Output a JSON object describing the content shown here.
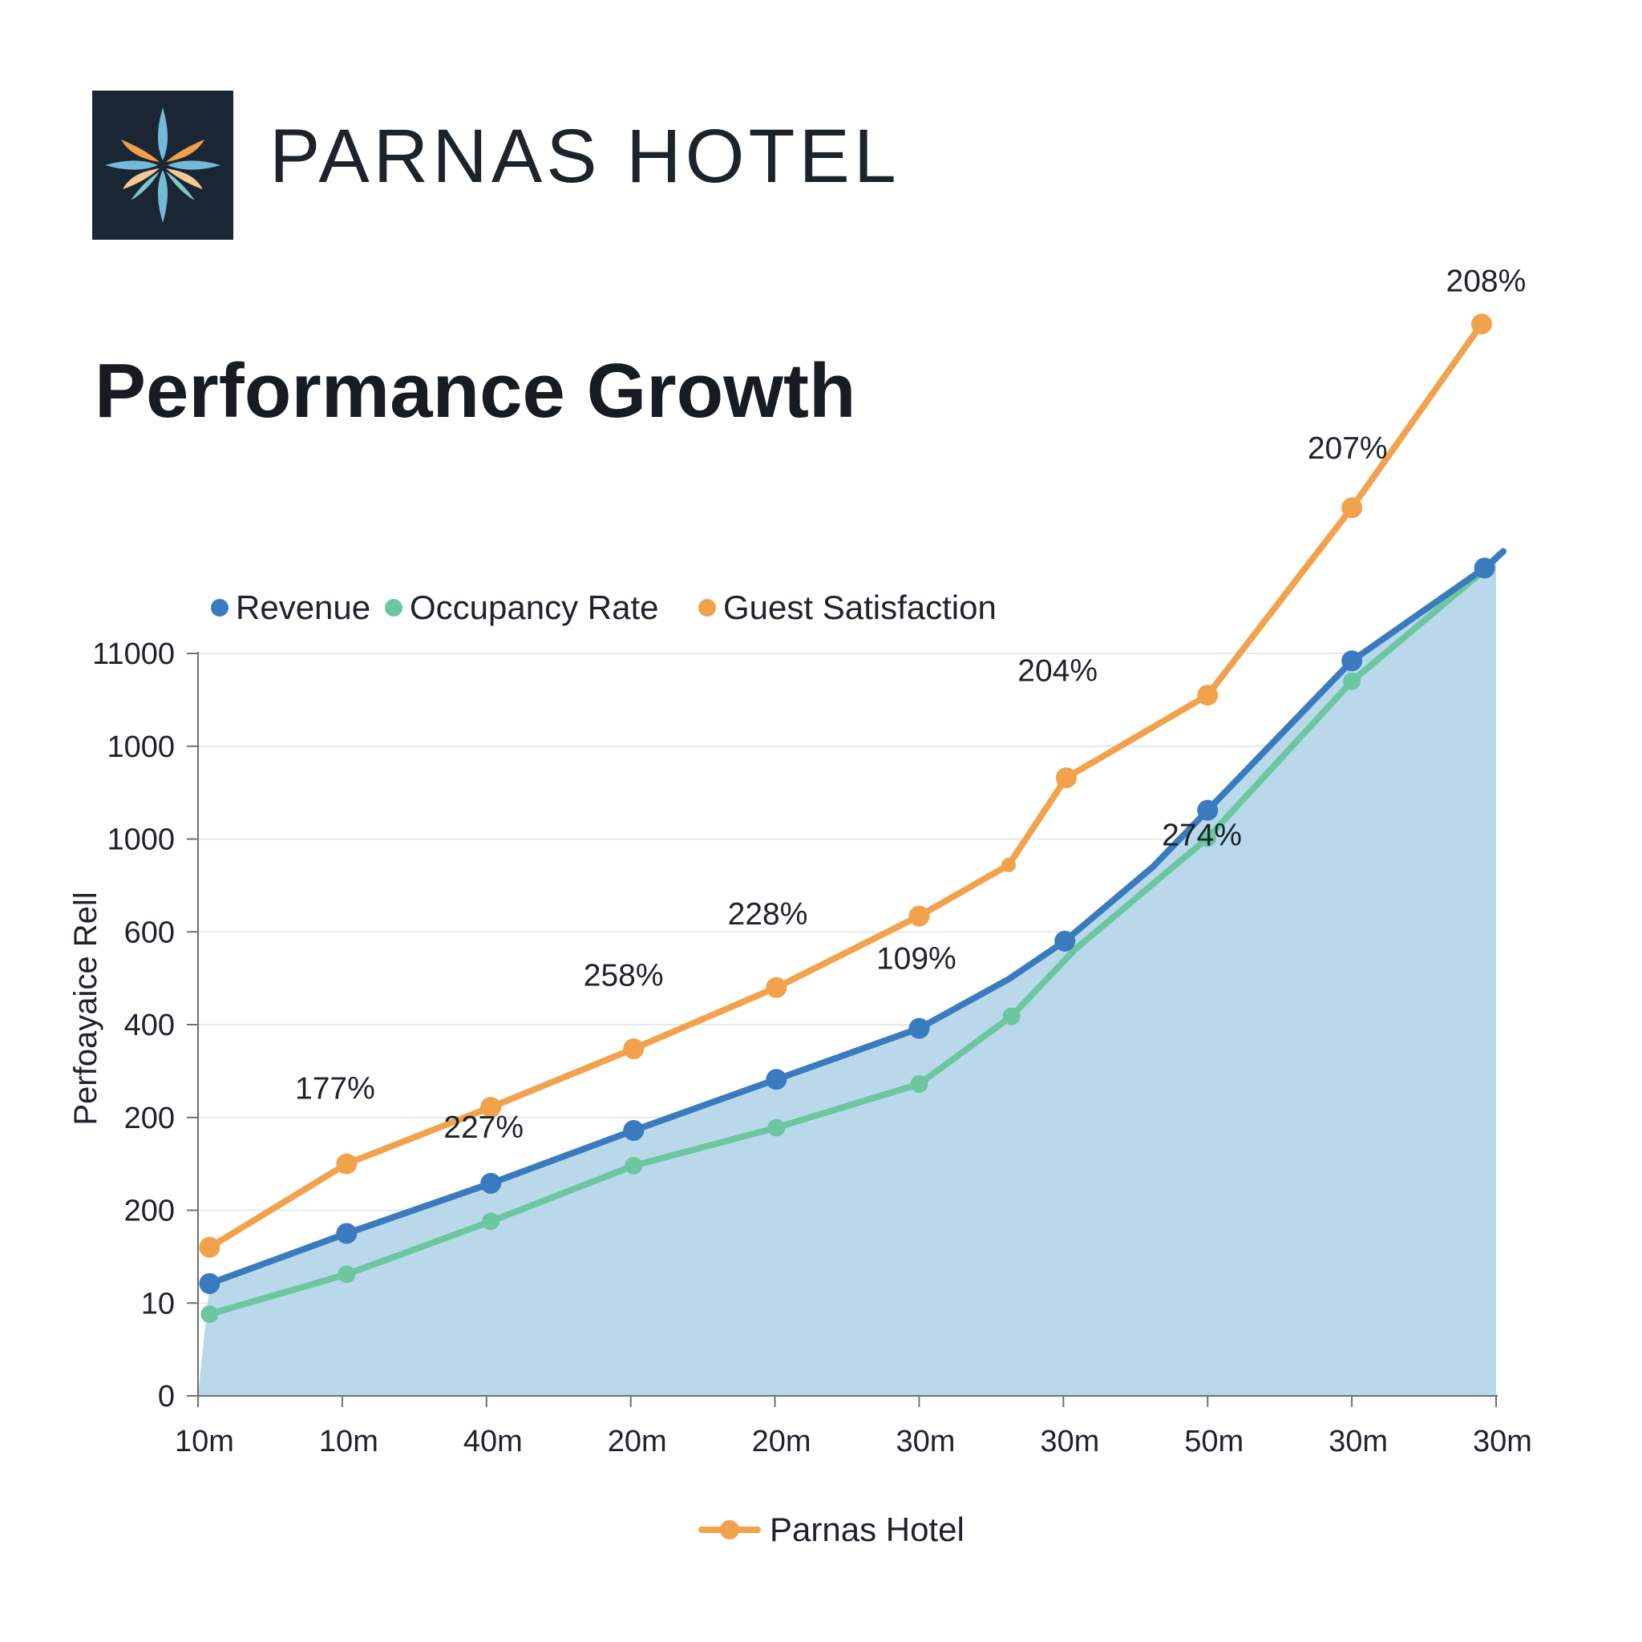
{
  "brand": {
    "name": "PARNAS HOTEL",
    "logo_icon": "star-flower-logo-icon"
  },
  "chart_data": {
    "type": "line",
    "title": "Performance Growth",
    "xlabel": "",
    "ylabel": "Perfoayaice Rell",
    "categories": [
      "10m",
      "10m",
      "40m",
      "20m",
      "20m",
      "30m",
      "30m",
      "50m",
      "30m",
      "30m"
    ],
    "y_tick_labels": [
      "0",
      "10",
      "200",
      "200",
      "400",
      "600",
      "1000",
      "1000",
      "11000"
    ],
    "grid": true,
    "legend_position": "top",
    "series": [
      {
        "name": "Revenue",
        "color": "#3a7bbf",
        "area_fill": "#b9d9ea",
        "x": [
          0.08,
          1.03,
          2.03,
          3.02,
          4.01,
          5.0,
          5.62,
          6.01,
          6.62,
          7.0,
          8.0,
          8.92,
          9.05
        ],
        "values": [
          1.21,
          1.75,
          2.29,
          2.86,
          3.41,
          3.96,
          4.49,
          4.9,
          5.7,
          6.31,
          7.92,
          8.92,
          9.1
        ],
        "markers": [
          true,
          true,
          true,
          true,
          true,
          true,
          false,
          true,
          false,
          true,
          true,
          true,
          false
        ]
      },
      {
        "name": "Occupancy Rate",
        "color": "#6cc6a0",
        "x": [
          0.08,
          1.03,
          2.03,
          3.02,
          4.01,
          5.0,
          5.64,
          6.08,
          6.7,
          7.0,
          8.0,
          8.92,
          9.05
        ],
        "values": [
          0.88,
          1.31,
          1.88,
          2.48,
          2.89,
          3.36,
          4.09,
          4.81,
          5.62,
          6.01,
          7.7,
          8.9,
          9.1
        ],
        "markers": [
          true,
          true,
          true,
          true,
          true,
          true,
          true,
          false,
          false,
          true,
          true,
          false,
          false
        ]
      },
      {
        "name": "Guest Satisfaction",
        "color": "#f2a24c",
        "x": [
          0.08,
          1.03,
          2.03,
          3.02,
          4.01,
          5.0,
          5.62,
          6.02,
          7.0,
          8.0,
          8.9
        ],
        "values": [
          1.6,
          2.5,
          3.11,
          3.74,
          4.4,
          5.17,
          5.72,
          6.66,
          7.55,
          9.57,
          11.55
        ],
        "markers": [
          true,
          true,
          true,
          true,
          true,
          true,
          true,
          true,
          true,
          true,
          true
        ],
        "data_labels": [
          {
            "x": 0.95,
            "y": 3.2,
            "text": "177%"
          },
          {
            "x": 1.98,
            "y": 2.78,
            "text": "227%"
          },
          {
            "x": 2.95,
            "y": 4.42,
            "text": "258%"
          },
          {
            "x": 3.95,
            "y": 5.08,
            "text": "228%"
          },
          {
            "x": 4.98,
            "y": 4.6,
            "text": "109%"
          },
          {
            "x": 5.96,
            "y": 7.7,
            "text": "204%"
          },
          {
            "x": 6.96,
            "y": 5.93,
            "text": "274%"
          },
          {
            "x": 7.97,
            "y": 10.1,
            "text": "207%"
          },
          {
            "x": 8.93,
            "y": 11.9,
            "text": "208%"
          }
        ]
      }
    ],
    "footer_legend": {
      "name": "Parnas Hotel",
      "color": "#f2a24c"
    }
  }
}
